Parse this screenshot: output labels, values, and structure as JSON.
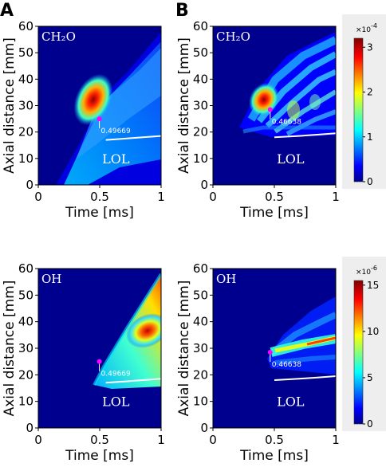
{
  "panel_labels": {
    "a": "A",
    "b": "B"
  },
  "colors": {
    "background": "#00008f",
    "line": "#ffffff",
    "marker": "#ff00ff",
    "cbar_bg": "#eeeeee"
  },
  "chart_data": [
    {
      "id": "ch2o_a",
      "type": "heatmap",
      "species": "CH₂O",
      "xlabel": "Time [ms]",
      "ylabel": "Axial distance [mm]",
      "xlim": [
        0,
        1
      ],
      "ylim": [
        0,
        60
      ],
      "xticks": [
        "0",
        "0.5",
        "1"
      ],
      "yticks": [
        "0",
        "10",
        "20",
        "30",
        "40",
        "50",
        "60"
      ],
      "annotation": {
        "x": 0.497,
        "y": 25,
        "label": "0.49669"
      },
      "lol": {
        "label": "LOL",
        "x": [
          0.55,
          0.7,
          0.85,
          1.0
        ],
        "y": [
          17,
          17.5,
          18,
          18.5
        ]
      }
    },
    {
      "id": "ch2o_b",
      "type": "heatmap",
      "species": "CH₂O",
      "xlabel": "Time [ms]",
      "ylabel": "Axial distance [mm]",
      "xlim": [
        0,
        1
      ],
      "ylim": [
        0,
        60
      ],
      "xticks": [
        "0",
        "0.5",
        "1"
      ],
      "yticks": [
        "0",
        "10",
        "20",
        "30",
        "40",
        "50",
        "60"
      ],
      "annotation": {
        "x": 0.466,
        "y": 28.5,
        "label": "0.46638"
      },
      "lol": {
        "label": "LOL",
        "x": [
          0.5,
          0.7,
          0.85,
          1.0
        ],
        "y": [
          18,
          18.5,
          19,
          19.5
        ]
      }
    },
    {
      "id": "oh_a",
      "type": "heatmap",
      "species": "OH",
      "xlabel": "Time [ms]",
      "ylabel": "Axial distance [mm]",
      "xlim": [
        0,
        1
      ],
      "ylim": [
        0,
        60
      ],
      "xticks": [
        "0",
        "0.5",
        "1"
      ],
      "yticks": [
        "0",
        "10",
        "20",
        "30",
        "40",
        "50",
        "60"
      ],
      "annotation": {
        "x": 0.497,
        "y": 25,
        "label": "0.49669"
      },
      "lol": {
        "label": "LOL",
        "x": [
          0.55,
          0.7,
          0.85,
          1.0
        ],
        "y": [
          17,
          17.5,
          18,
          18.5
        ]
      }
    },
    {
      "id": "oh_b",
      "type": "heatmap",
      "species": "OH",
      "xlabel": "Time [ms]",
      "ylabel": "Axial distance [mm]",
      "xlim": [
        0,
        1
      ],
      "ylim": [
        0,
        60
      ],
      "xticks": [
        "0",
        "0.5",
        "1"
      ],
      "yticks": [
        "0",
        "10",
        "20",
        "30",
        "40",
        "50",
        "60"
      ],
      "annotation": {
        "x": 0.466,
        "y": 28.5,
        "label": "0.46638"
      },
      "lol": {
        "label": "LOL",
        "x": [
          0.5,
          0.7,
          0.85,
          1.0
        ],
        "y": [
          18,
          18.5,
          19,
          19.5
        ]
      }
    }
  ],
  "colorbars": [
    {
      "scale_label": "×10",
      "exponent": "-4",
      "range": [
        0,
        3.2
      ],
      "ticks": [
        "0",
        "1",
        "2",
        "3"
      ]
    },
    {
      "scale_label": "×10",
      "exponent": "-6",
      "range": [
        0,
        15.5
      ],
      "ticks": [
        "0",
        "5",
        "10",
        "15"
      ]
    }
  ]
}
